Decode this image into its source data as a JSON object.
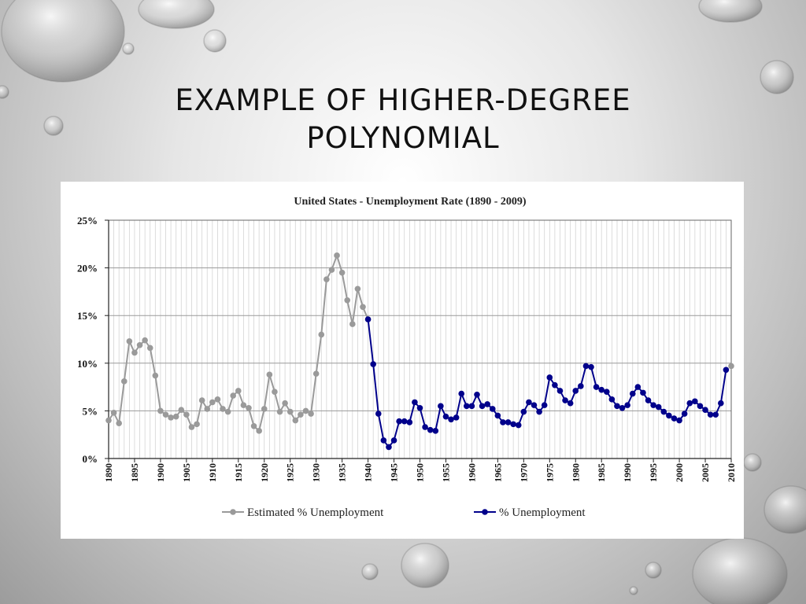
{
  "slide": {
    "title_line1": "EXAMPLE OF HIGHER-DEGREE",
    "title_line2": "POLYNOMIAL"
  },
  "chart_data": {
    "type": "line",
    "title": "United States - Unemployment Rate (1890 - 2009)",
    "xlabel": "",
    "ylabel": "",
    "xlim": [
      1890,
      2010
    ],
    "ylim": [
      0,
      25
    ],
    "y_ticks": [
      "0%",
      "5%",
      "10%",
      "15%",
      "20%",
      "25%"
    ],
    "x_ticks": [
      "1890",
      "1895",
      "1900",
      "1905",
      "1910",
      "1915",
      "1920",
      "1925",
      "1930",
      "1935",
      "1940",
      "1945",
      "1950",
      "1955",
      "1960",
      "1965",
      "1970",
      "1975",
      "1980",
      "1985",
      "1990",
      "1995",
      "2000",
      "2005",
      "2010"
    ],
    "grid": true,
    "legend_position": "bottom",
    "series": [
      {
        "name": "Estimated % Unemployment",
        "color": "#9a9a9a",
        "x": [
          1890,
          1891,
          1892,
          1893,
          1894,
          1895,
          1896,
          1897,
          1898,
          1899,
          1900,
          1901,
          1902,
          1903,
          1904,
          1905,
          1906,
          1907,
          1908,
          1909,
          1910,
          1911,
          1912,
          1913,
          1914,
          1915,
          1916,
          1917,
          1918,
          1919,
          1920,
          1921,
          1922,
          1923,
          1924,
          1925,
          1926,
          1927,
          1928,
          1929,
          1930,
          1931,
          1932,
          1933,
          1934,
          1935,
          1936,
          1937,
          1938,
          1939,
          1940
        ],
        "values": [
          4.0,
          4.8,
          3.7,
          8.1,
          12.3,
          11.1,
          11.9,
          12.4,
          11.6,
          8.7,
          5.0,
          4.6,
          4.3,
          4.4,
          5.1,
          4.6,
          3.3,
          3.6,
          6.1,
          5.2,
          5.9,
          6.2,
          5.2,
          4.9,
          6.6,
          7.1,
          5.6,
          5.3,
          3.4,
          2.9,
          5.2,
          8.8,
          7.0,
          4.9,
          5.8,
          4.9,
          4.0,
          4.6,
          5.0,
          4.7,
          8.9,
          13.0,
          18.8,
          19.8,
          21.3,
          19.5,
          16.6,
          14.1,
          17.8,
          15.9,
          14.6
        ]
      },
      {
        "name": "% Unemployment",
        "color": "#00008b",
        "x": [
          1940,
          1941,
          1942,
          1943,
          1944,
          1945,
          1946,
          1947,
          1948,
          1949,
          1950,
          1951,
          1952,
          1953,
          1954,
          1955,
          1956,
          1957,
          1958,
          1959,
          1960,
          1961,
          1962,
          1963,
          1964,
          1965,
          1966,
          1967,
          1968,
          1969,
          1970,
          1971,
          1972,
          1973,
          1974,
          1975,
          1976,
          1977,
          1978,
          1979,
          1980,
          1981,
          1982,
          1983,
          1984,
          1985,
          1986,
          1987,
          1988,
          1989,
          1990,
          1991,
          1992,
          1993,
          1994,
          1995,
          1996,
          1997,
          1998,
          1999,
          2000,
          2001,
          2002,
          2003,
          2004,
          2005,
          2006,
          2007,
          2008,
          2009
        ],
        "values": [
          14.6,
          9.9,
          4.7,
          1.9,
          1.2,
          1.9,
          3.9,
          3.9,
          3.8,
          5.9,
          5.3,
          3.3,
          3.0,
          2.9,
          5.5,
          4.4,
          4.1,
          4.3,
          6.8,
          5.5,
          5.5,
          6.7,
          5.5,
          5.7,
          5.2,
          4.5,
          3.8,
          3.8,
          3.6,
          3.5,
          4.9,
          5.9,
          5.6,
          4.9,
          5.6,
          8.5,
          7.7,
          7.1,
          6.1,
          5.8,
          7.1,
          7.6,
          9.7,
          9.6,
          7.5,
          7.2,
          7.0,
          6.2,
          5.5,
          5.3,
          5.6,
          6.8,
          7.5,
          6.9,
          6.1,
          5.6,
          5.4,
          4.9,
          4.5,
          4.2,
          4.0,
          4.7,
          5.8,
          6.0,
          5.5,
          5.1,
          4.6,
          4.6,
          5.8,
          9.3
        ]
      }
    ],
    "extra_points": [
      {
        "series": "Estimated % Unemployment",
        "x": 2010,
        "y": 9.7
      }
    ]
  }
}
